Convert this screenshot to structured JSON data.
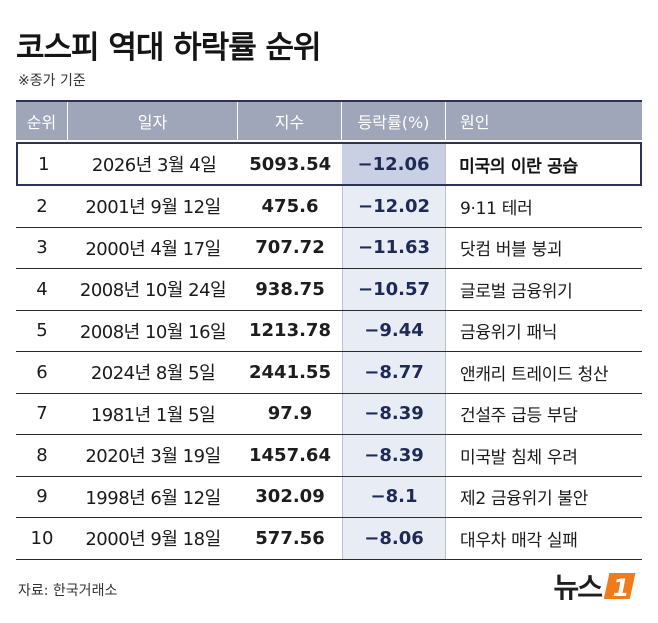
{
  "title": "코스피 역대 하락률 순위",
  "note": "※종가 기준",
  "source": "자료: 한국거래소",
  "logo": {
    "text": "뉴스",
    "mark_text": "1"
  },
  "colors": {
    "header_bg": "#9fa6ba",
    "rate_band": "#e8ecf5",
    "first_row_border": "#2d3354",
    "logo_orange": "#f07b1b"
  },
  "chart_data": {
    "type": "table",
    "title": "코스피 역대 하락률 순위",
    "columns": [
      "순위",
      "일자",
      "지수",
      "등락률(%)",
      "원인"
    ],
    "rows": [
      [
        "1",
        "2026년 3월 4일",
        "5093.54",
        "-12.06",
        "미국의 이란 공습"
      ],
      [
        "2",
        "2001년 9월 12일",
        "475.6",
        "-12.02",
        "9·11 테러"
      ],
      [
        "3",
        "2000년 4월 17일",
        "707.72",
        "-11.63",
        "닷컴 버블 붕괴"
      ],
      [
        "4",
        "2008년 10월 24일",
        "938.75",
        "-10.57",
        "글로벌 금융위기"
      ],
      [
        "5",
        "2008년 10월 16일",
        "1213.78",
        "-9.44",
        "금융위기 패닉"
      ],
      [
        "6",
        "2024년 8월 5일",
        "2441.55",
        "-8.77",
        "앤캐리 트레이드 청산"
      ],
      [
        "7",
        "1981년 1월 5일",
        "97.9",
        "-8.39",
        "건설주 급등 부담"
      ],
      [
        "8",
        "2020년 3월 19일",
        "1457.64",
        "-8.39",
        "미국발 침체 우려"
      ],
      [
        "9",
        "1998년 6월 12일",
        "302.09",
        "-8.1",
        "제2 금융위기 불안"
      ],
      [
        "10",
        "2000년 9월 18일",
        "577.56",
        "-8.06",
        "대우차 매각 실패"
      ]
    ]
  }
}
